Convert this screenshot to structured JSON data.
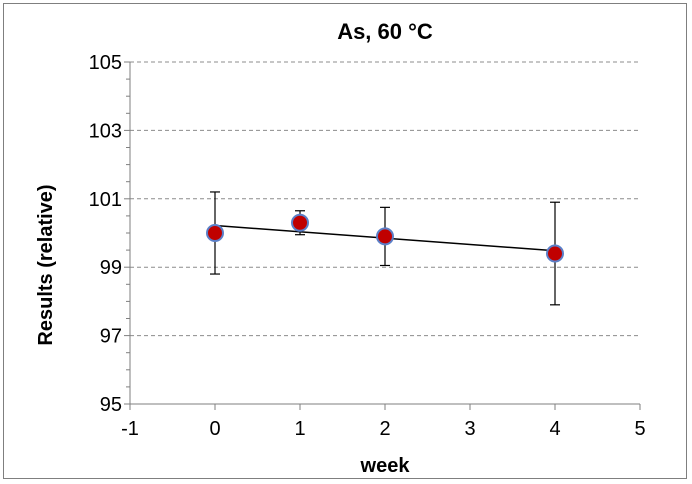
{
  "chart_data": {
    "type": "scatter",
    "title": "As, 60 °C",
    "xlabel": "week",
    "ylabel": "Results (relative)",
    "xlim": [
      -1,
      5
    ],
    "ylim": [
      95,
      105
    ],
    "x_ticks": [
      -1,
      0,
      1,
      2,
      3,
      4,
      5
    ],
    "y_ticks": [
      95,
      97,
      99,
      101,
      103,
      105
    ],
    "y_minor_step": 0.5,
    "grid": "horizontal dashed at major y ticks",
    "legend": "none",
    "series": [
      {
        "points": [
          {
            "x": 0,
            "y": 100.0,
            "err_low": 98.8,
            "err_high": 101.2
          },
          {
            "x": 1,
            "y": 100.3,
            "err_low": 99.95,
            "err_high": 100.65
          },
          {
            "x": 2,
            "y": 99.9,
            "err_low": 99.05,
            "err_high": 100.75
          },
          {
            "x": 4,
            "y": 99.4,
            "err_low": 97.9,
            "err_high": 100.9
          }
        ],
        "marker_fill": "#c00000",
        "marker_edge": "#5b7fc7"
      }
    ],
    "trendline": {
      "x_start": 0,
      "y_start": 100.22,
      "x_end": 4,
      "y_end": 99.48,
      "color": "#000000"
    }
  },
  "colors": {
    "gridline": "#8c8c8c",
    "axis": "#7f7f7f",
    "frame": "#7f7f7f"
  }
}
